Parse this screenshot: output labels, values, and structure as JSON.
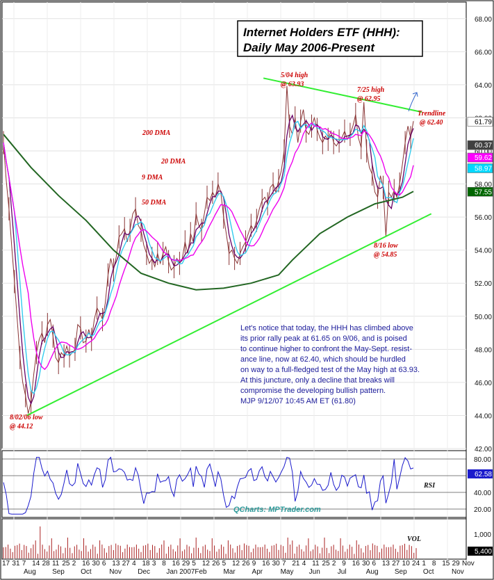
{
  "chart_data": {
    "type": "line",
    "title_lines": [
      "Internet Holders ETF (HHH):",
      "Daily May 2006-Present"
    ],
    "price_axis": {
      "ylim": [
        42,
        69
      ],
      "ticks": [
        "42.00",
        "44.00",
        "46.00",
        "48.00",
        "50.00",
        "52.00",
        "54.00",
        "56.00",
        "58.00",
        "60.00",
        "62.00",
        "64.00",
        "66.00",
        "68.00"
      ]
    },
    "rsi_axis": {
      "ylim": [
        10,
        90
      ],
      "ticks": [
        "20.00",
        "40.00",
        "60.00",
        "80.00"
      ],
      "label": "RSI",
      "last": "62.58"
    },
    "vol_axis": {
      "ticks": [
        "1,000",
        "5,400"
      ],
      "label": "VOL"
    },
    "price_badges": [
      {
        "value": "61.79",
        "bg": "#ffffff",
        "fg": "#000000"
      },
      {
        "value": "60.37",
        "bg": "#404040",
        "fg": "#ffffff"
      },
      {
        "value": "59.62",
        "bg": "#ff00ff",
        "fg": "#ffffff"
      },
      {
        "value": "58.97",
        "bg": "#00d8ff",
        "fg": "#ffffff"
      },
      {
        "value": "57.55",
        "bg": "#006600",
        "fg": "#ffffff"
      }
    ],
    "x_tick_labels": [
      "17",
      "31",
      "7",
      "14",
      "28",
      "11",
      "25",
      "2",
      "16",
      "30",
      "6",
      "13",
      "27",
      "4",
      "18",
      "3",
      "8",
      "16",
      "29",
      "5",
      "12",
      "26",
      "5",
      "12",
      "26",
      "9",
      "16",
      "30",
      "7",
      "21",
      "4",
      "11",
      "25",
      "2",
      "9",
      "16",
      "30",
      "6",
      "13",
      "27",
      "10",
      "24",
      "1",
      "8",
      "15",
      "29",
      "Nov"
    ],
    "month_labels": [
      "Aug",
      "Sep",
      "Oct",
      "Nov",
      "Dec",
      "Jan 2007",
      "Feb",
      "Mar",
      "Apr",
      "May",
      "Jun",
      "Jul",
      "Aug",
      "Sep",
      "Oct",
      "Nov"
    ],
    "series": [
      {
        "name": "9 DMA",
        "color": "#660066"
      },
      {
        "name": "20 DMA",
        "color": "#33ccee"
      },
      {
        "name": "50 DMA",
        "color": "#ee00ee"
      },
      {
        "name": "200 DMA",
        "color": "#226622"
      }
    ],
    "price_path": [
      [
        0,
        60.5
      ],
      [
        4,
        58.2
      ],
      [
        8,
        56.5
      ],
      [
        12,
        54.2
      ],
      [
        16,
        52.1
      ],
      [
        20,
        49.8
      ],
      [
        24,
        47.5
      ],
      [
        28,
        46
      ],
      [
        32,
        45.2
      ],
      [
        36,
        44.12
      ],
      [
        40,
        44.8
      ],
      [
        44,
        46.5
      ],
      [
        48,
        47.8
      ],
      [
        52,
        48.6
      ],
      [
        56,
        49
      ],
      [
        60,
        48.4
      ],
      [
        64,
        49.5
      ],
      [
        68,
        49.8
      ],
      [
        72,
        48.8
      ],
      [
        76,
        47.5
      ],
      [
        80,
        47.2
      ],
      [
        84,
        47.8
      ],
      [
        88,
        47.6
      ],
      [
        92,
        48.2
      ],
      [
        96,
        47.6
      ],
      [
        100,
        47.8
      ],
      [
        104,
        48
      ],
      [
        108,
        49.5
      ],
      [
        112,
        49.3
      ],
      [
        116,
        48.4
      ],
      [
        120,
        48.5
      ],
      [
        124,
        49.2
      ],
      [
        128,
        48.6
      ],
      [
        132,
        49.8
      ],
      [
        136,
        50.5
      ],
      [
        140,
        50.2
      ],
      [
        144,
        49.8
      ],
      [
        148,
        50.8
      ],
      [
        152,
        52.5
      ],
      [
        156,
        53.5
      ],
      [
        160,
        52.8
      ],
      [
        164,
        53.6
      ],
      [
        168,
        54.8
      ],
      [
        172,
        55
      ],
      [
        176,
        55.3
      ],
      [
        180,
        54.5
      ],
      [
        184,
        55.2
      ],
      [
        188,
        56.2
      ],
      [
        192,
        56.5
      ],
      [
        196,
        55.5
      ],
      [
        200,
        55.2
      ],
      [
        204,
        54.3
      ],
      [
        208,
        53.8
      ],
      [
        212,
        53.2
      ],
      [
        216,
        53.5
      ],
      [
        220,
        53
      ],
      [
        224,
        53.8
      ],
      [
        228,
        53.2
      ],
      [
        232,
        53.8
      ],
      [
        236,
        54.2
      ],
      [
        240,
        53.3
      ],
      [
        244,
        52.8
      ],
      [
        248,
        53
      ],
      [
        252,
        53.5
      ],
      [
        256,
        53.2
      ],
      [
        260,
        53.5
      ],
      [
        264,
        54.5
      ],
      [
        268,
        53.8
      ],
      [
        272,
        55
      ],
      [
        276,
        54.5
      ],
      [
        280,
        56.2
      ],
      [
        284,
        55.5
      ],
      [
        288,
        55.2
      ],
      [
        292,
        56.2
      ],
      [
        296,
        57.2
      ],
      [
        300,
        57
      ],
      [
        304,
        57.5
      ],
      [
        308,
        57.2
      ],
      [
        312,
        58
      ],
      [
        316,
        57.5
      ],
      [
        320,
        56
      ],
      [
        324,
        55
      ],
      [
        328,
        53.8
      ],
      [
        332,
        54
      ],
      [
        336,
        53.5
      ],
      [
        340,
        53.2
      ],
      [
        344,
        53.8
      ],
      [
        348,
        54.2
      ],
      [
        352,
        54.5
      ],
      [
        356,
        55
      ],
      [
        360,
        55.5
      ],
      [
        364,
        55.2
      ],
      [
        368,
        55.8
      ],
      [
        372,
        56.5
      ],
      [
        376,
        57
      ],
      [
        380,
        57.2
      ],
      [
        384,
        56.8
      ],
      [
        388,
        57.8
      ],
      [
        392,
        58
      ],
      [
        396,
        57.5
      ],
      [
        400,
        58.2
      ],
      [
        404,
        58.8
      ],
      [
        408,
        60
      ],
      [
        412,
        63.93
      ],
      [
        416,
        61.5
      ],
      [
        420,
        61
      ],
      [
        424,
        62
      ],
      [
        428,
        60.5
      ],
      [
        432,
        61.8
      ],
      [
        436,
        62.5
      ],
      [
        440,
        61.2
      ],
      [
        444,
        61
      ],
      [
        448,
        61.5
      ],
      [
        452,
        62
      ],
      [
        456,
        61.3
      ],
      [
        460,
        60.8
      ],
      [
        464,
        60.5
      ],
      [
        468,
        60.9
      ],
      [
        472,
        60.7
      ],
      [
        476,
        61.2
      ],
      [
        480,
        60.5
      ],
      [
        484,
        60.3
      ],
      [
        488,
        60.6
      ],
      [
        492,
        60.8
      ],
      [
        496,
        61.2
      ],
      [
        500,
        60.7
      ],
      [
        504,
        61
      ],
      [
        508,
        61.5
      ],
      [
        512,
        62.2
      ],
      [
        516,
        60.8
      ],
      [
        520,
        60.2
      ],
      [
        524,
        62.95
      ],
      [
        528,
        60
      ],
      [
        532,
        59
      ],
      [
        536,
        58.6
      ],
      [
        540,
        57.5
      ],
      [
        544,
        57.2
      ],
      [
        548,
        58.5
      ],
      [
        552,
        57.8
      ],
      [
        556,
        54.85
      ],
      [
        560,
        57.5
      ],
      [
        564,
        57.2
      ],
      [
        568,
        57.6
      ],
      [
        572,
        57.2
      ],
      [
        576,
        58
      ],
      [
        580,
        59.2
      ],
      [
        584,
        60.5
      ],
      [
        588,
        61.5
      ],
      [
        592,
        60.8
      ],
      [
        596,
        61.8
      ]
    ],
    "annotations": [
      "5/04 high @ 63.93",
      "7/25 high @ 62.95",
      "Trendline @ 62.40",
      "8/16 low @ 54.85",
      "8/02/06 low @ 44.12"
    ],
    "commentary": [
      "Let's notice that today, the HHH has climbed above",
      "its prior rally peak at 61.65 on 9/06, and is poised",
      "to continue higher to confront the May-Sept. resist-",
      "ance line, now at 62.40, which should be hurdled",
      "on way to a full-fledged test of the May high at 63.93.",
      "At this juncture, only a decline that breaks will",
      "compromise the developing bullish pattern.",
      "MJP  9/12/07  10:45 AM ET (61.80)"
    ],
    "source": "QCharts: MPTrader.com",
    "colors": {
      "trendline": "#33ee33",
      "annotation": "#cc0000",
      "price": "#883333",
      "rsi": "#1a1acc",
      "volume": "#aa2222"
    }
  }
}
